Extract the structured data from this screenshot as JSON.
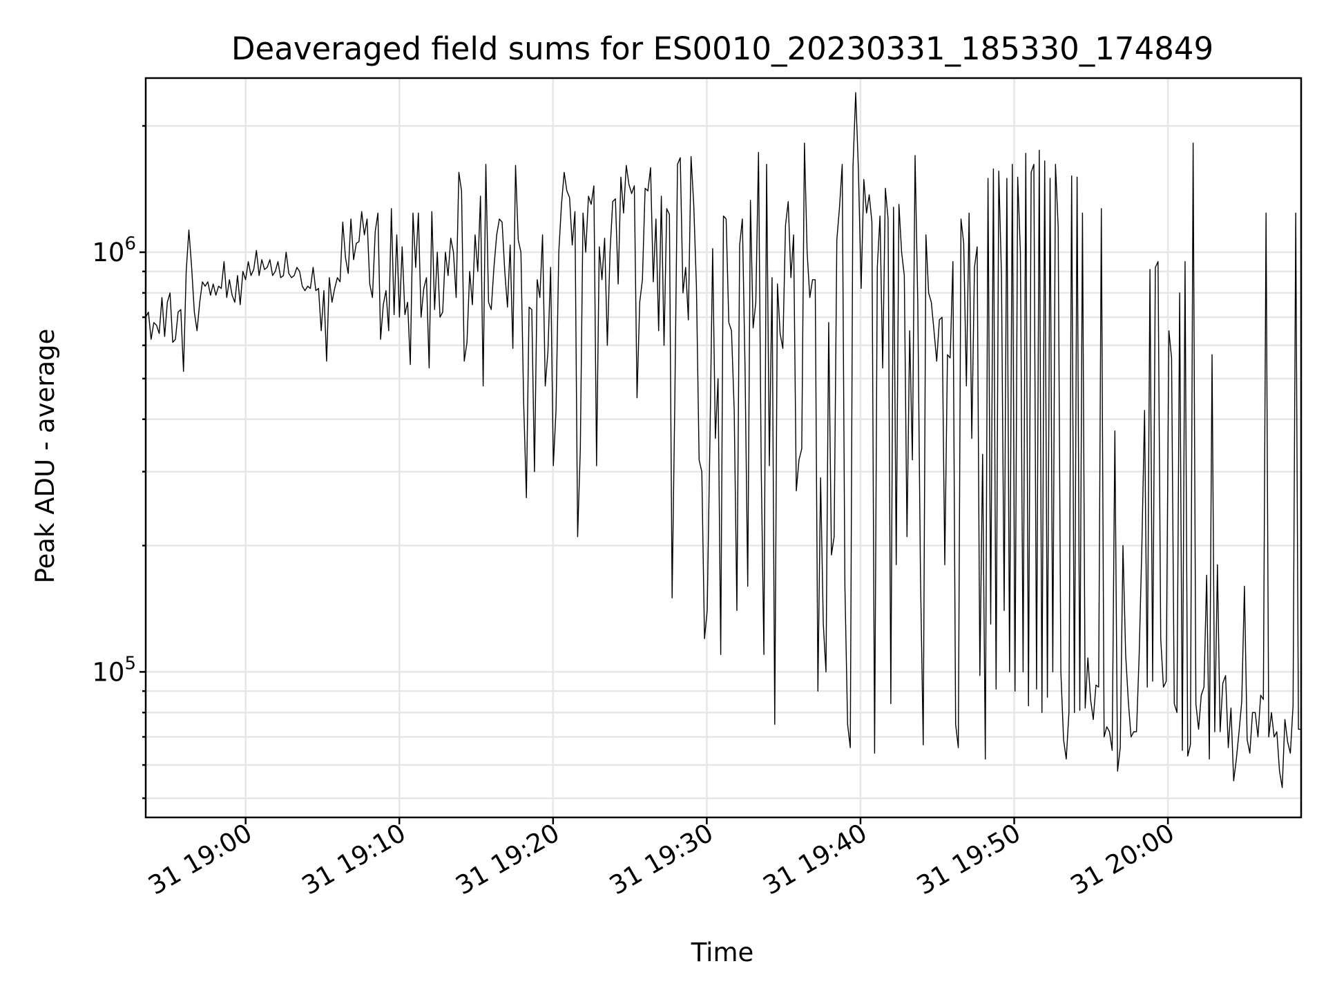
{
  "chart_data": {
    "type": "line",
    "title": "Deaveraged field sums for ES0010_20230331_185330_174849",
    "xlabel": "Time",
    "ylabel": "Peak ADU - average",
    "yscale": "log",
    "ylim": [
      45000,
      2600000
    ],
    "xlim": [
      "2023-03-31 18:53:30",
      "2023-03-31 20:08:40"
    ],
    "grid": true,
    "x_tick_labels": [
      "31 19:00",
      "31 19:10",
      "31 19:20",
      "31 19:30",
      "31 19:40",
      "31 19:50",
      "31 20:00"
    ],
    "x_tick_times": [
      "2023-03-31 19:00:00",
      "2023-03-31 19:10:00",
      "2023-03-31 19:20:00",
      "2023-03-31 19:30:00",
      "2023-03-31 19:40:00",
      "2023-03-31 19:50:00",
      "2023-03-31 20:00:00"
    ],
    "y_tick_labels": [
      {
        "base": "10",
        "exp": "5",
        "value": 100000
      },
      {
        "base": "10",
        "exp": "6",
        "value": 1000000
      }
    ],
    "series": [
      {
        "color": "#000000",
        "x_start": "2023-03-31 18:53:30",
        "x_end": "2023-03-31 20:08:40",
        "values": [
          700000,
          720000,
          620000,
          680000,
          670000,
          640000,
          780000,
          630000,
          760000,
          800000,
          610000,
          620000,
          720000,
          730000,
          520000,
          900000,
          1130000,
          920000,
          720000,
          650000,
          760000,
          850000,
          830000,
          850000,
          790000,
          840000,
          790000,
          830000,
          820000,
          950000,
          780000,
          860000,
          790000,
          760000,
          880000,
          750000,
          900000,
          860000,
          950000,
          880000,
          910000,
          1010000,
          880000,
          960000,
          910000,
          920000,
          960000,
          880000,
          900000,
          950000,
          870000,
          880000,
          1000000,
          890000,
          870000,
          880000,
          920000,
          900000,
          830000,
          810000,
          830000,
          820000,
          920000,
          810000,
          820000,
          650000,
          810000,
          550000,
          870000,
          760000,
          820000,
          870000,
          850000,
          1180000,
          970000,
          890000,
          1200000,
          960000,
          1050000,
          1060000,
          1250000,
          1100000,
          1200000,
          840000,
          780000,
          1120000,
          1240000,
          620000,
          750000,
          810000,
          650000,
          1270000,
          710000,
          1100000,
          700000,
          1030000,
          710000,
          760000,
          540000,
          1240000,
          920000,
          1240000,
          700000,
          820000,
          870000,
          530000,
          1250000,
          730000,
          1000000,
          700000,
          720000,
          1000000,
          880000,
          1080000,
          1000000,
          780000,
          1550000,
          1400000,
          550000,
          610000,
          900000,
          750000,
          1100000,
          900000,
          1360000,
          480000,
          1620000,
          760000,
          730000,
          920000,
          1100000,
          1200000,
          1180000,
          900000,
          740000,
          1040000,
          590000,
          1610000,
          1070000,
          1000000,
          440000,
          260000,
          740000,
          730000,
          300000,
          860000,
          780000,
          1100000,
          480000,
          580000,
          920000,
          310000,
          420000,
          1000000,
          1300000,
          1550000,
          1400000,
          1350000,
          1040000,
          1250000,
          210000,
          340000,
          1240000,
          1000000,
          1360000,
          1300000,
          1440000,
          310000,
          1030000,
          860000,
          1080000,
          600000,
          1000000,
          1320000,
          1340000,
          840000,
          1510000,
          1240000,
          1610000,
          1450000,
          1380000,
          1440000,
          450000,
          760000,
          860000,
          1420000,
          1400000,
          1590000,
          850000,
          1200000,
          650000,
          1360000,
          600000,
          1270000,
          1230000,
          150000,
          440000,
          1620000,
          1680000,
          800000,
          920000,
          690000,
          1690000,
          1300000,
          830000,
          320000,
          300000,
          120000,
          140000,
          360000,
          1020000,
          360000,
          500000,
          110000,
          1220000,
          1200000,
          680000,
          650000,
          420000,
          140000,
          1040000,
          1200000,
          530000,
          160000,
          1330000,
          660000,
          760000,
          1730000,
          310000,
          110000,
          1620000,
          310000,
          870000,
          75000,
          840000,
          640000,
          590000,
          1160000,
          1320000,
          870000,
          1100000,
          270000,
          320000,
          340000,
          1820000,
          1000000,
          780000,
          860000,
          860000,
          90000,
          290000,
          130000,
          100000,
          680000,
          190000,
          210000,
          1070000,
          1280000,
          1620000,
          160000,
          75000,
          66000,
          1600000,
          2400000,
          1580000,
          820000,
          1490000,
          1240000,
          1370000,
          1180000,
          64000,
          920000,
          1220000,
          530000,
          1420000,
          1200000,
          84000,
          1280000,
          180000,
          1300000,
          1000000,
          880000,
          210000,
          650000,
          320000,
          1700000,
          760000,
          170000,
          67000,
          1100000,
          800000,
          760000,
          650000,
          550000,
          690000,
          700000,
          180000,
          570000,
          560000,
          950000,
          75000,
          66000,
          1200000,
          1050000,
          480000,
          1240000,
          360000,
          920000,
          1030000,
          98000,
          330000,
          62000,
          1500000,
          130000,
          1580000,
          91000,
          1560000,
          880000,
          140000,
          1500000,
          100000,
          1620000,
          90000,
          1510000,
          1000000,
          100000,
          1720000,
          83000,
          1550000,
          1620000,
          91000,
          1750000,
          80000,
          1650000,
          87000,
          1500000,
          100000,
          1620000,
          1150000,
          100000,
          69000,
          62000,
          80000,
          1520000,
          80000,
          1510000,
          81000,
          1240000,
          82000,
          108000,
          86000,
          77000,
          93000,
          92000,
          1270000,
          70000,
          74000,
          72000,
          65000,
          375000,
          58000,
          66000,
          200000,
          110000,
          85000,
          70000,
          72000,
          72000,
          110000,
          200000,
          420000,
          92000,
          910000,
          95000,
          920000,
          950000,
          120000,
          92000,
          95000,
          650000,
          560000,
          84000,
          80000,
          800000,
          65000,
          950000,
          63000,
          67000,
          1820000,
          84000,
          73000,
          88000,
          92000,
          170000,
          62000,
          570000,
          72000,
          180000,
          72000,
          94000,
          98000,
          66000,
          82000,
          55000,
          62000,
          72000,
          85000,
          160000,
          69000,
          64000,
          80000,
          80000,
          70000,
          88000,
          86000,
          1240000,
          70000,
          80000,
          70000,
          72000,
          58000,
          53000,
          77000,
          68000,
          64000,
          83000,
          1240000,
          73000,
          73000
        ]
      }
    ]
  }
}
